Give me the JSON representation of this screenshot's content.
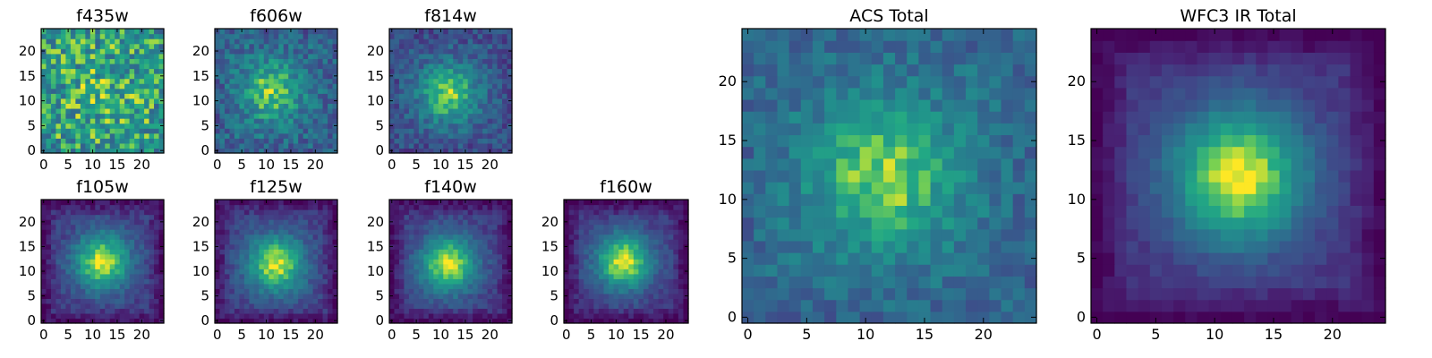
{
  "chart_data": [
    {
      "type": "heatmap",
      "title": "f435w",
      "grid": false,
      "size": 24,
      "cmap": "viridis",
      "peak": [
        12,
        12
      ],
      "amplitude": 0.08,
      "noise": 0.55,
      "background": 0.68,
      "seed": 11,
      "xticks": [
        "0",
        "5",
        "10",
        "15",
        "20"
      ],
      "yticks": [
        "0",
        "5",
        "10",
        "15",
        "20"
      ]
    },
    {
      "type": "heatmap",
      "title": "f606w",
      "grid": false,
      "size": 24,
      "cmap": "viridis",
      "peak": [
        11,
        12
      ],
      "amplitude": 0.45,
      "noise": 0.34,
      "background": 0.42,
      "seed": 23,
      "xticks": [
        "0",
        "5",
        "10",
        "15",
        "20"
      ],
      "yticks": [
        "0",
        "5",
        "10",
        "15",
        "20"
      ]
    },
    {
      "type": "heatmap",
      "title": "f814w",
      "grid": false,
      "size": 24,
      "cmap": "viridis",
      "peak": [
        11.5,
        11.5
      ],
      "amplitude": 0.55,
      "noise": 0.28,
      "background": 0.33,
      "seed": 37,
      "xticks": [
        "0",
        "5",
        "10",
        "15",
        "20"
      ],
      "yticks": [
        "0",
        "5",
        "10",
        "15",
        "20"
      ]
    },
    {
      "type": "heatmap",
      "title": "f105w",
      "grid": false,
      "size": 24,
      "cmap": "viridis",
      "peak": [
        12,
        12
      ],
      "amplitude": 0.75,
      "noise": 0.18,
      "background": 0.22,
      "seed": 41,
      "xticks": [
        "0",
        "5",
        "10",
        "15",
        "20"
      ],
      "yticks": [
        "0",
        "5",
        "10",
        "15",
        "20"
      ]
    },
    {
      "type": "heatmap",
      "title": "f125w",
      "grid": false,
      "size": 24,
      "cmap": "viridis",
      "peak": [
        12,
        11.5
      ],
      "amplitude": 0.72,
      "noise": 0.18,
      "background": 0.24,
      "seed": 53,
      "xticks": [
        "0",
        "5",
        "10",
        "15",
        "20"
      ],
      "yticks": [
        "0",
        "5",
        "10",
        "15",
        "20"
      ]
    },
    {
      "type": "heatmap",
      "title": "f140w",
      "grid": false,
      "size": 24,
      "cmap": "viridis",
      "peak": [
        11.5,
        11.5
      ],
      "amplitude": 0.75,
      "noise": 0.16,
      "background": 0.22,
      "seed": 67,
      "xticks": [
        "0",
        "5",
        "10",
        "15",
        "20"
      ],
      "yticks": [
        "0",
        "5",
        "10",
        "15",
        "20"
      ]
    },
    {
      "type": "heatmap",
      "title": "f160w",
      "grid": false,
      "size": 24,
      "cmap": "viridis",
      "peak": [
        11.5,
        12
      ],
      "amplitude": 0.78,
      "noise": 0.16,
      "background": 0.2,
      "seed": 79,
      "xticks": [
        "0",
        "5",
        "10",
        "15",
        "20"
      ],
      "yticks": [
        "0",
        "5",
        "10",
        "15",
        "20"
      ]
    },
    {
      "type": "heatmap",
      "title": "ACS Total",
      "grid": false,
      "size": 24,
      "cmap": "viridis",
      "peak": [
        11.5,
        12
      ],
      "amplitude": 0.45,
      "noise": 0.24,
      "background": 0.45,
      "seed": 91,
      "xticks": [
        "0",
        "5",
        "10",
        "15",
        "20"
      ],
      "yticks": [
        "0",
        "5",
        "10",
        "15",
        "20"
      ]
    },
    {
      "type": "heatmap",
      "title": "WFC3 IR Total",
      "grid": false,
      "size": 24,
      "cmap": "viridis",
      "peak": [
        12,
        12
      ],
      "amplitude": 0.82,
      "noise": 0.1,
      "background": 0.18,
      "seed": 103,
      "xticks": [
        "0",
        "5",
        "10",
        "15",
        "20"
      ],
      "yticks": [
        "0",
        "5",
        "10",
        "15",
        "20"
      ]
    }
  ]
}
